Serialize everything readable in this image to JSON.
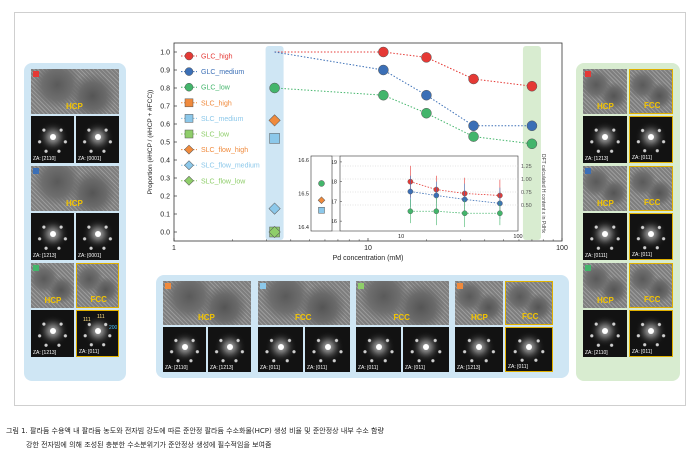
{
  "figure": {
    "caption_line1": "그림 1. 팔라듐 수용액 내 팔라듐 농도와 전자빔 강도에 따른 준안정 팔라듐 수소화물(HCP) 생성 비율 및 준안정상 내부 수소 함량",
    "caption_line2": "강한 전자빔에 의해 조성된 충분한 수소분위기가 준안정상 생성에 필수적임을 보여줌"
  },
  "left_panel": {
    "tiles": [
      {
        "phase": "HCP",
        "za1": "ZA: [2110]",
        "za2": "ZA: [0001]",
        "color": "#e53935"
      },
      {
        "phase": "HCP",
        "za1": "ZA: [1213]",
        "za2": "ZA: [0001]",
        "color": "#3b6fb6"
      },
      {
        "phase": "HCP",
        "phase2": "FCC",
        "za1": "ZA: [1213]",
        "za2": "ZA: [011]",
        "color": "#43b56b",
        "hkl": [
          "111",
          "111",
          "200"
        ]
      }
    ]
  },
  "right_panel": {
    "tiles": [
      {
        "phase": "HCP",
        "phase2": "FCC",
        "za1": "ZA: [1213]",
        "za2": "ZA: [011]",
        "color": "#e53935"
      },
      {
        "phase": "HCP",
        "phase2": "FCC",
        "za1": "ZA: [0111]",
        "za2": "ZA: [011]",
        "color": "#3b6fb6"
      },
      {
        "phase": "HCP",
        "phase2": "FCC",
        "za1": "ZA: [2110]",
        "za2": "ZA: [011]",
        "color": "#43b56b"
      }
    ]
  },
  "bottom_panel": {
    "tiles": [
      {
        "phase": "HCP",
        "za1": "ZA: [2110]",
        "za2": "ZA: [1213]",
        "color": "#f08a3c"
      },
      {
        "phase": "FCC",
        "za1": "ZA: [011]",
        "za2": "ZA: [011]",
        "color": "#8cc8ea"
      },
      {
        "phase": "FCC",
        "za1": "ZA: [011]",
        "za2": "ZA: [011]",
        "color": "#8fce6a"
      },
      {
        "phase": "HCP",
        "phase2": "FCC",
        "za1": "ZA: [1213]",
        "za2": "ZA: [011]",
        "color": "#f08a3c"
      }
    ]
  },
  "chart_data": [
    {
      "type": "scatter",
      "title": "",
      "xlabel": "Pd concentration (mM)",
      "ylabel": "Proportion (#HCP / (#HCP + #FCC))",
      "xscale": "log",
      "xlim": [
        1,
        100
      ],
      "ylim": [
        -0.05,
        1.05
      ],
      "xticks": [
        1,
        10,
        100
      ],
      "yticks": [
        0.0,
        0.1,
        0.2,
        0.3,
        0.4,
        0.5,
        0.6,
        0.7,
        0.8,
        0.9,
        1.0
      ],
      "grid": false,
      "legend_position": "left",
      "series": [
        {
          "name": "GLC_high",
          "marker": "circle",
          "color": "#e53935",
          "x": [
            12,
            20,
            35,
            70
          ],
          "y": [
            1.0,
            0.97,
            0.85,
            0.81
          ],
          "dashed_to_x": 3.3,
          "dashed_to_y": 1.0
        },
        {
          "name": "GLC_medium",
          "marker": "circle",
          "color": "#3b6fb6",
          "x": [
            12,
            20,
            35,
            70
          ],
          "y": [
            0.9,
            0.76,
            0.59,
            0.59
          ],
          "dashed_to_x": 3.3,
          "dashed_to_y": 1.0
        },
        {
          "name": "GLC_low",
          "marker": "circle",
          "color": "#43b56b",
          "x": [
            3.3,
            12,
            20,
            35,
            70
          ],
          "y": [
            0.8,
            0.76,
            0.66,
            0.53,
            0.49
          ]
        },
        {
          "name": "SLC_high",
          "marker": "square",
          "color": "#f08a3c",
          "x": [],
          "y": []
        },
        {
          "name": "SLC_medium",
          "marker": "square",
          "color": "#8cc8ea",
          "x": [
            3.3
          ],
          "y": [
            0.52
          ]
        },
        {
          "name": "SLC_low",
          "marker": "square",
          "color": "#8fce6a",
          "x": [
            3.3
          ],
          "y": [
            0.0
          ]
        },
        {
          "name": "SLC_flow_high",
          "marker": "diamond",
          "color": "#f08a3c",
          "x": [
            3.3
          ],
          "y": [
            0.62
          ]
        },
        {
          "name": "SLC_flow_medium",
          "marker": "diamond",
          "color": "#8cc8ea",
          "x": [
            3.3
          ],
          "y": [
            0.13
          ]
        },
        {
          "name": "SLC_flow_low",
          "marker": "diamond",
          "color": "#8fce6a",
          "x": [
            3.3
          ],
          "y": [
            0.0
          ]
        }
      ],
      "highlight_bands": [
        {
          "x": 3.3,
          "color": "#cfe6f4"
        },
        {
          "x": 70,
          "color": "#d8ecd0"
        }
      ]
    },
    {
      "type": "line",
      "title": "",
      "xlabel": "",
      "ylabel": "V_H (Å³)",
      "ylabel_right": "DFT calculated H content x in PdHx",
      "xscale": "log",
      "xlim": [
        3,
        100
      ],
      "ylim": [
        15.5,
        19.3
      ],
      "yticks": [
        16,
        17,
        18,
        19
      ],
      "right_ticks": [
        "1.25",
        "1.00",
        "0.75",
        "0.50"
      ],
      "xticks": [
        10,
        100
      ],
      "series": [
        {
          "name": "GLC_high",
          "color": "#e53935",
          "x": [
            12,
            20,
            35,
            70
          ],
          "y": [
            18.0,
            17.6,
            17.4,
            17.3
          ],
          "err": [
            0.8,
            0.7,
            0.8,
            0.8
          ]
        },
        {
          "name": "GLC_medium",
          "color": "#3b6fb6",
          "x": [
            12,
            20,
            35,
            70
          ],
          "y": [
            17.5,
            17.3,
            17.1,
            16.9
          ],
          "err": [
            0.8,
            0.7,
            0.8,
            0.8
          ]
        },
        {
          "name": "GLC_low",
          "color": "#43b56b",
          "x": [
            12,
            20,
            35,
            70
          ],
          "y": [
            16.5,
            16.5,
            16.4,
            16.4
          ],
          "err": [
            0.6,
            0.7,
            0.7,
            0.6
          ]
        }
      ]
    },
    {
      "type": "scatter",
      "title": "",
      "ylim": [
        16.4,
        16.6
      ],
      "yticks": [
        16.4,
        16.5,
        16.6
      ],
      "points": [
        {
          "series": "GLC_low",
          "marker": "circle",
          "color": "#43b56b",
          "y": 16.53
        },
        {
          "series": "SLC_flow_high",
          "marker": "diamond",
          "color": "#f08a3c",
          "y": 16.48
        },
        {
          "series": "SLC_medium",
          "marker": "square",
          "color": "#8cc8ea",
          "y": 16.45
        }
      ]
    }
  ]
}
